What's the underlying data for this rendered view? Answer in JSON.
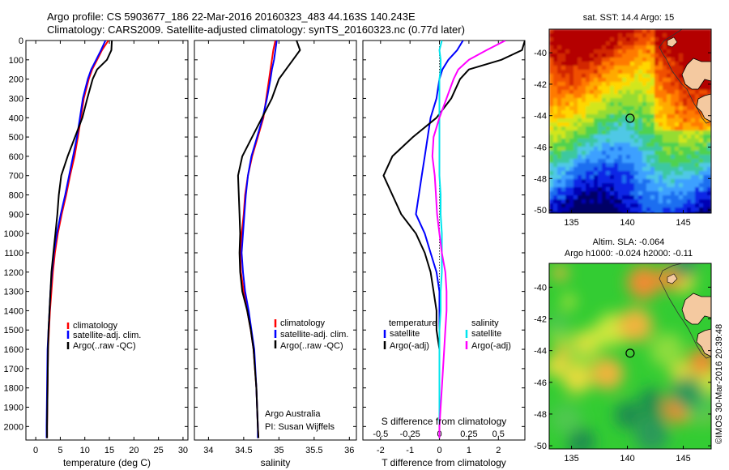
{
  "header": {
    "line1": "Argo profile: CS 5903677_186 22-Mar-2016 20160323_483 44.163S 140.243E",
    "line2": "Climatology: CARS2009. Satellite-adjusted climatology: synTS_20160323.nc (0.77d later)"
  },
  "colors": {
    "climatology": "#ff0000",
    "satellite": "#0000ff",
    "argo": "#000000",
    "satellite_salinity": "#00e5ee",
    "argo_salinity": "#ff00ff"
  },
  "depth_ticks": [
    "0",
    "100",
    "200",
    "300",
    "400",
    "500",
    "600",
    "700",
    "800",
    "900",
    "1000",
    "1100",
    "1200",
    "1300",
    "1400",
    "1500",
    "1600",
    "1700",
    "1800",
    "1900",
    "2000"
  ],
  "chart_data": [
    {
      "type": "line",
      "name": "temperature-panel",
      "xlabel": "temperature (deg C)",
      "xticks": [
        "0",
        "5",
        "10",
        "15",
        "20",
        "25",
        "30"
      ],
      "xlim": [
        -2,
        31
      ],
      "ylim": [
        2070,
        0
      ],
      "legend": [
        "climatology",
        "satellite-adj. clim.",
        "Argo(..raw -QC)"
      ],
      "series": [
        {
          "name": "climatology",
          "color": "climatology",
          "x": [
            14.8,
            13.5,
            12.5,
            11.5,
            10.8,
            9.8,
            9.2,
            8.6,
            7.9,
            7.0,
            6.2,
            5.3,
            4.5,
            3.9,
            3.5,
            3.2,
            2.9,
            2.7,
            2.5,
            2.4,
            2.3,
            2.3
          ],
          "y": [
            0,
            50,
            100,
            150,
            200,
            300,
            400,
            500,
            600,
            700,
            800,
            900,
            1000,
            1100,
            1200,
            1300,
            1400,
            1500,
            1600,
            1800,
            2000,
            2060
          ]
        },
        {
          "name": "satellite-adj. clim.",
          "color": "satellite",
          "x": [
            14.2,
            13.3,
            12.3,
            11.3,
            10.6,
            9.6,
            9.0,
            8.4,
            7.6,
            6.8,
            6.0,
            5.1,
            4.3,
            3.7,
            3.3,
            3.0,
            2.8,
            2.6,
            2.4,
            2.3,
            2.2,
            2.2
          ],
          "y": [
            0,
            50,
            100,
            150,
            200,
            300,
            400,
            500,
            600,
            700,
            800,
            900,
            1000,
            1100,
            1200,
            1300,
            1400,
            1500,
            1600,
            1800,
            2000,
            2060
          ]
        },
        {
          "name": "Argo(..raw -QC)",
          "color": "argo",
          "x": [
            15.5,
            15.4,
            14.5,
            12.5,
            11.6,
            10.5,
            9.5,
            8.0,
            6.5,
            5.2,
            4.7,
            4.4,
            4.0,
            3.6,
            3.2,
            3.0,
            2.8,
            2.6,
            2.5,
            2.4,
            2.3,
            2.3
          ],
          "y": [
            0,
            50,
            100,
            150,
            200,
            300,
            400,
            500,
            600,
            700,
            800,
            900,
            1000,
            1100,
            1200,
            1300,
            1400,
            1500,
            1600,
            1800,
            2000,
            2060
          ]
        }
      ]
    },
    {
      "type": "line",
      "name": "salinity-panel",
      "xlabel": "salinity",
      "xticks": [
        "34",
        "34.5",
        "35",
        "35.5",
        "36"
      ],
      "xlim": [
        33.8,
        36.1
      ],
      "ylim": [
        2070,
        0
      ],
      "legend": [
        "climatology",
        "satellite-adj. clim.",
        "Argo(..raw -QC)"
      ],
      "annotation": [
        "Argo Australia",
        "PI: Susan Wijffels"
      ],
      "series": [
        {
          "name": "climatology",
          "color": "climatology",
          "x": [
            34.95,
            34.92,
            34.9,
            34.88,
            34.86,
            34.82,
            34.78,
            34.7,
            34.62,
            34.56,
            34.52,
            34.5,
            34.47,
            34.45,
            34.46,
            34.5,
            34.55,
            34.6,
            34.64,
            34.68,
            34.7,
            34.71
          ],
          "y": [
            0,
            50,
            100,
            150,
            200,
            300,
            400,
            500,
            600,
            700,
            800,
            900,
            1000,
            1100,
            1200,
            1300,
            1400,
            1500,
            1600,
            1800,
            2000,
            2060
          ]
        },
        {
          "name": "satellite-adj. clim.",
          "color": "satellite",
          "x": [
            34.97,
            34.95,
            34.93,
            34.9,
            34.88,
            34.83,
            34.77,
            34.69,
            34.61,
            34.56,
            34.53,
            34.51,
            34.49,
            34.47,
            34.49,
            34.52,
            34.57,
            34.61,
            34.65,
            34.68,
            34.7,
            34.7
          ],
          "y": [
            0,
            50,
            100,
            150,
            200,
            300,
            400,
            500,
            600,
            700,
            800,
            900,
            1000,
            1100,
            1200,
            1300,
            1400,
            1500,
            1600,
            1800,
            2000,
            2060
          ]
        },
        {
          "name": "Argo(..raw -QC)",
          "color": "argo",
          "x": [
            35.25,
            35.3,
            35.2,
            35.1,
            35.0,
            34.9,
            34.76,
            34.62,
            34.48,
            34.42,
            34.43,
            34.44,
            34.45,
            34.44,
            34.45,
            34.48,
            34.55,
            34.6,
            34.64,
            34.68,
            34.7,
            34.71
          ],
          "y": [
            0,
            50,
            100,
            150,
            200,
            300,
            400,
            500,
            600,
            700,
            800,
            900,
            1000,
            1100,
            1200,
            1300,
            1400,
            1500,
            1600,
            1800,
            2000,
            2060
          ]
        }
      ]
    },
    {
      "type": "line",
      "name": "difference-panel",
      "xlabel": "T difference from climatology",
      "top_label": "S difference from climatology",
      "xticks": [
        "-2",
        "-1",
        "0",
        "1",
        "2"
      ],
      "xlim": [
        -2.6,
        2.9
      ],
      "sticks": [
        "-0.5",
        "-0.25",
        "0",
        "0.25",
        "0.5"
      ],
      "slim": [
        -0.65,
        0.725
      ],
      "ylim": [
        2070,
        0
      ],
      "legend": {
        "temperature_title": "temperature",
        "salinity_title": "salinity",
        "t_satellite": "satellite",
        "t_argo": "Argo(-adj)",
        "s_satellite": "satellite",
        "s_argo": "Argo(-adj)"
      },
      "series": [
        {
          "name": "T satellite",
          "color": "satellite",
          "x": [
            0.8,
            0.6,
            0.3,
            0.1,
            0.0,
            -0.1,
            -0.3,
            -0.4,
            -0.5,
            -0.6,
            -0.7,
            -0.8,
            -0.5,
            -0.3,
            -0.1,
            0.0,
            0.0,
            0.0,
            0.0,
            0.0,
            0.0,
            0.0
          ],
          "y": [
            0,
            50,
            100,
            150,
            200,
            300,
            400,
            500,
            600,
            700,
            800,
            900,
            1000,
            1100,
            1200,
            1300,
            1400,
            1500,
            1600,
            1800,
            2000,
            2060
          ]
        },
        {
          "name": "T Argo(-adj)",
          "color": "argo",
          "x": [
            2.9,
            2.8,
            2.1,
            1.0,
            0.7,
            0.4,
            -0.1,
            -0.9,
            -1.6,
            -1.9,
            -1.6,
            -1.3,
            -0.8,
            -0.5,
            -0.3,
            -0.2,
            -0.1,
            -0.1,
            0.0,
            0.0,
            0.0,
            0.0
          ],
          "y": [
            0,
            50,
            100,
            150,
            200,
            300,
            400,
            500,
            600,
            700,
            800,
            900,
            1000,
            1100,
            1200,
            1300,
            1400,
            1500,
            1600,
            1800,
            2000,
            2060
          ]
        },
        {
          "name": "S satellite",
          "color": "satellite_salinity",
          "x": [
            0.02,
            0.0,
            0.01,
            0.01,
            0.0,
            0.0,
            0.0,
            0.0,
            0.0,
            0.0,
            0.01,
            0.01,
            0.02,
            0.02,
            0.02,
            0.01,
            0.01,
            0.0,
            0.0,
            0.0,
            0.0,
            0.0
          ],
          "y": [
            0,
            50,
            100,
            150,
            200,
            300,
            400,
            500,
            600,
            700,
            800,
            900,
            1000,
            1100,
            1200,
            1300,
            1400,
            1500,
            1600,
            1800,
            2000,
            2060
          ]
        },
        {
          "name": "S Argo(-adj)",
          "color": "argo_salinity",
          "x": [
            0.56,
            0.4,
            0.25,
            0.16,
            0.12,
            0.06,
            0.0,
            -0.05,
            -0.06,
            -0.04,
            -0.03,
            -0.02,
            0.0,
            0.02,
            0.05,
            0.06,
            0.06,
            0.05,
            0.04,
            0.02,
            0.0,
            0.0
          ],
          "y": [
            0,
            50,
            100,
            150,
            200,
            300,
            400,
            500,
            600,
            700,
            800,
            900,
            1000,
            1100,
            1200,
            1300,
            1400,
            1500,
            1600,
            1800,
            2000,
            2060
          ]
        }
      ]
    },
    {
      "type": "heatmap",
      "name": "sst-map",
      "title": "sat. SST: 14.4  Argo: 15",
      "xticks": [
        "135",
        "140",
        "145"
      ],
      "yticks": [
        "-40",
        "-42",
        "-44",
        "-46",
        "-48",
        "-50"
      ],
      "xlim": [
        133,
        147.5
      ],
      "ylim": [
        -50.2,
        -38.5
      ],
      "float_position": {
        "lon": 140.243,
        "lat": -44.163
      }
    },
    {
      "type": "heatmap",
      "name": "sla-map",
      "title_line1": "Altim. SLA: -0.064",
      "title_line2": "Argo h1000: -0.024  h2000: -0.11",
      "xticks": [
        "135",
        "140",
        "145"
      ],
      "yticks": [
        "-40",
        "-42",
        "-44",
        "-46",
        "-48",
        "-50"
      ],
      "xlim": [
        133,
        147.5
      ],
      "ylim": [
        -50.2,
        -38.5
      ],
      "float_position": {
        "lon": 140.243,
        "lat": -44.163
      }
    }
  ],
  "watermark": "©IMOS 30-Mar-2016 20:39:48"
}
